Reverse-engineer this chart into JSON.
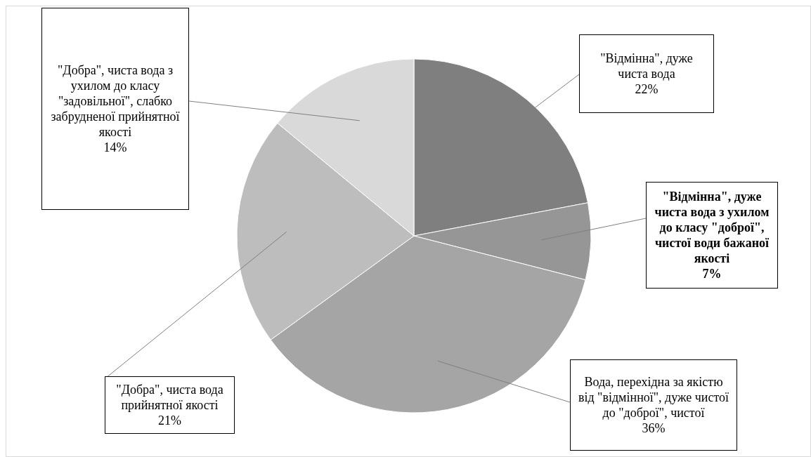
{
  "chart_data": {
    "type": "pie",
    "categories": [
      "\"Відмінна\", дуже чиста вода",
      "\"Відмінна\", дуже чиста вода з ухилом до класу \"доброї\", чистої води бажаної якості",
      "Вода, перехідна за якістю від \"відмінної\", дуже чистої до \"доброї\", чистої",
      "\"Добра\", чиста вода прийнятної якості",
      "\"Добра\", чиста вода з ухилом до класу \"задовільної\", слабко забрудненої прийнятної якості"
    ],
    "values": [
      22,
      7,
      36,
      21,
      14
    ],
    "value_labels": [
      "22%",
      "7%",
      "36%",
      "21%",
      "14%"
    ],
    "colors": [
      "#7f7f7f",
      "#969696",
      "#a5a5a5",
      "#bdbdbd",
      "#d9d9d9"
    ]
  }
}
